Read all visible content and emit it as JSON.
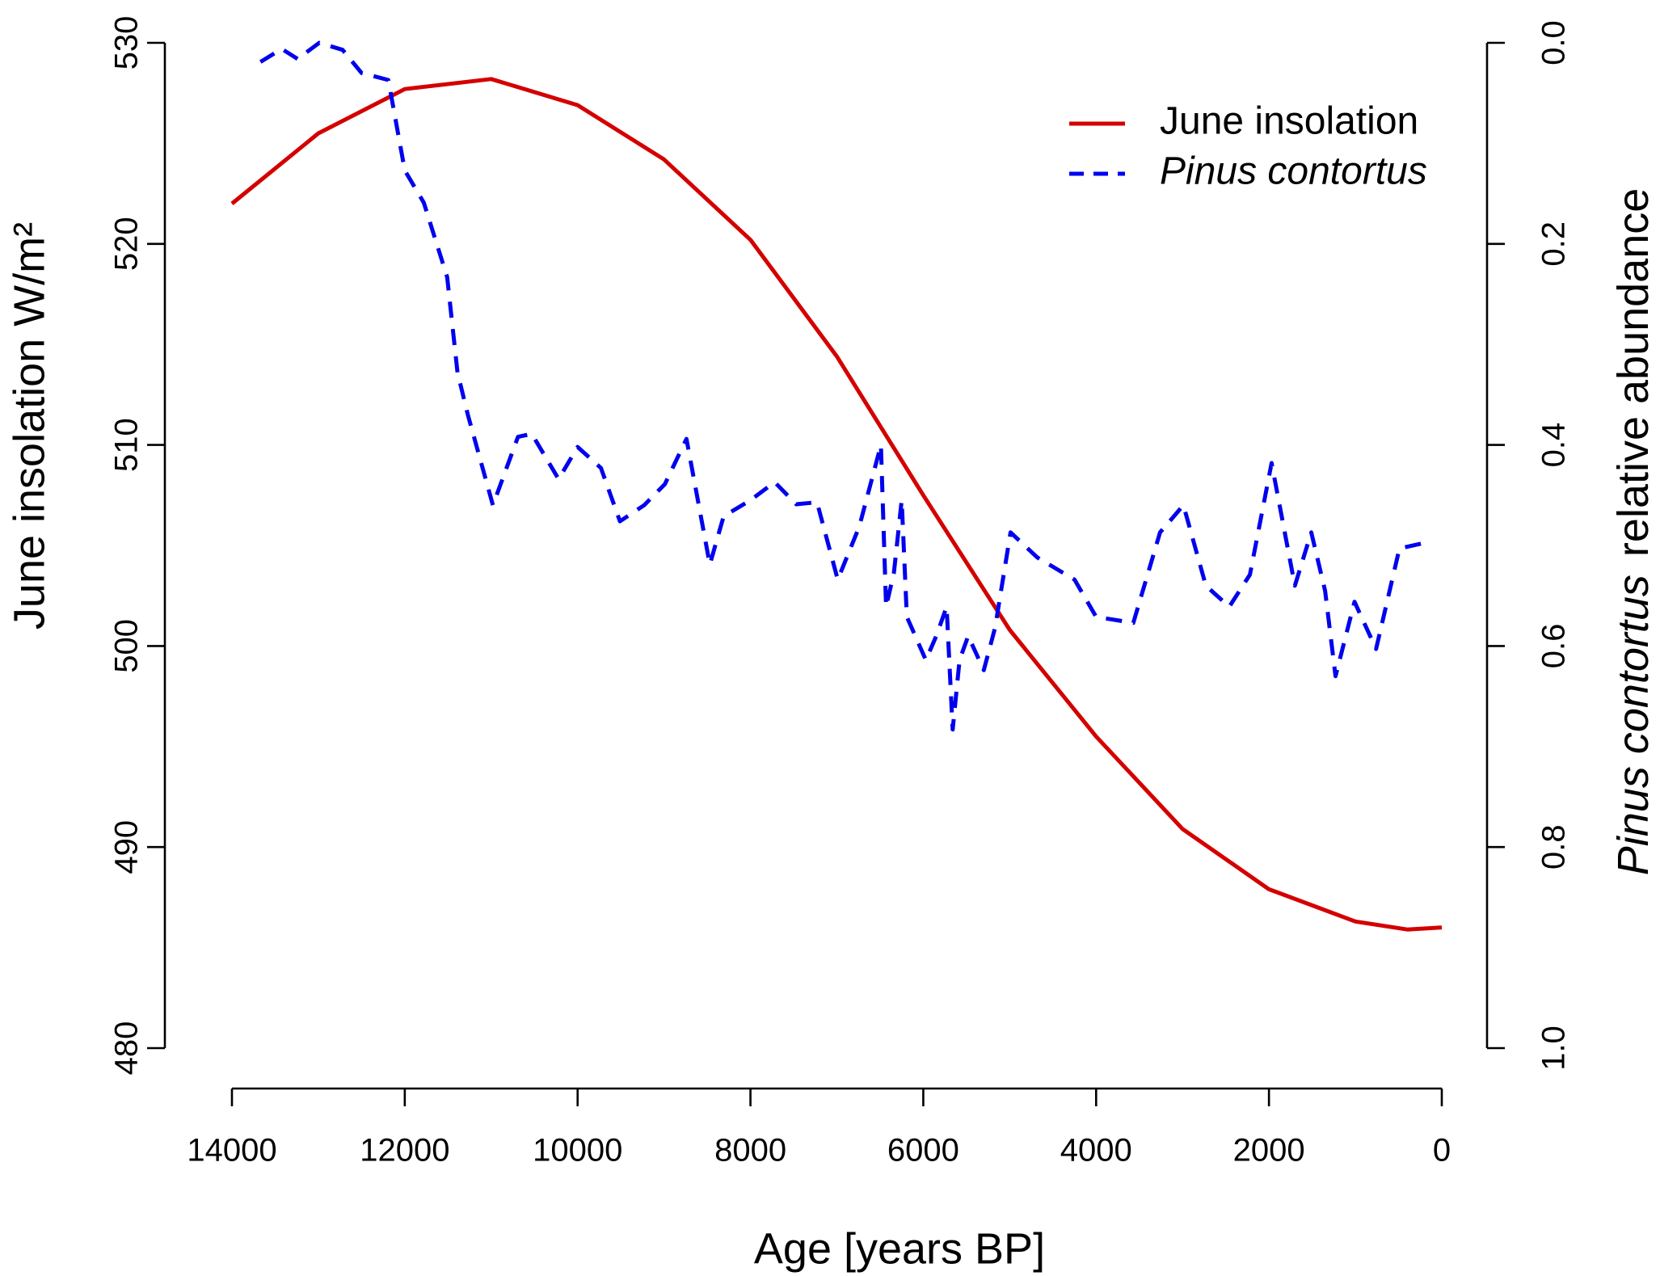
{
  "chart_data": {
    "type": "line",
    "xlabel": "Age [years BP]",
    "ylabel": "June insolation W/m²",
    "y2label_species": "Pinus contortus",
    "y2label": "relative abundance",
    "xlim": [
      14000,
      0
    ],
    "xticks": [
      14000,
      12000,
      10000,
      8000,
      6000,
      4000,
      2000,
      0
    ],
    "ylim": [
      480,
      530
    ],
    "yticks": [
      480,
      490,
      500,
      510,
      520,
      530
    ],
    "y2lim": [
      1,
      0
    ],
    "y2ticks": [
      {
        "value": 0,
        "label": "0.0"
      },
      {
        "value": 0.2,
        "label": "0.2"
      },
      {
        "value": 0.4,
        "label": "0.4"
      },
      {
        "value": 0.6,
        "label": "0.6"
      },
      {
        "value": 0.8,
        "label": "0.8"
      },
      {
        "value": 1,
        "label": "1.0"
      }
    ],
    "legend": "top-right",
    "series": [
      {
        "name": "June insolation",
        "color": "#d40000",
        "style": "solid",
        "x": [
          14000,
          13000,
          12000,
          11000,
          10000,
          9000,
          8000,
          7000,
          6000,
          5000,
          4000,
          3000,
          2000,
          1000,
          400,
          0
        ],
        "values": [
          522.0,
          525.5,
          527.7,
          528.2,
          526.9,
          524.2,
          520.2,
          514.4,
          507.5,
          500.8,
          495.5,
          490.9,
          487.9,
          486.3,
          485.9,
          486.0
        ]
      },
      {
        "name": "Pinus contortus",
        "color": "#0000ee",
        "style": "dashed",
        "axis": "y2",
        "x": [
          13670,
          13424,
          13240,
          12990,
          12720,
          12500,
          12190,
          12000,
          11780,
          11510,
          11390,
          11270,
          10980,
          10690,
          10530,
          10220,
          10000,
          9730,
          9510,
          9230,
          8990,
          8740,
          8470,
          8310,
          8000,
          7720,
          7470,
          7230,
          6990,
          6740,
          6490,
          6430,
          6340,
          6250,
          6190,
          5970,
          5850,
          5730,
          5660,
          5580,
          5480,
          5300,
          5170,
          4990,
          4680,
          4250,
          4000,
          3570,
          3260,
          2990,
          2730,
          2460,
          2220,
          1970,
          1700,
          1510,
          1350,
          1230,
          1010,
          760,
          490,
          180
        ],
        "values": [
          0.019,
          0.006,
          0.016,
          0.0,
          0.007,
          0.03,
          0.037,
          0.127,
          0.159,
          0.233,
          0.328,
          0.37,
          0.46,
          0.392,
          0.389,
          0.434,
          0.402,
          0.423,
          0.476,
          0.46,
          0.439,
          0.394,
          0.519,
          0.471,
          0.455,
          0.437,
          0.459,
          0.457,
          0.534,
          0.481,
          0.4,
          0.561,
          0.527,
          0.455,
          0.571,
          0.614,
          0.59,
          0.561,
          0.683,
          0.614,
          0.59,
          0.624,
          0.582,
          0.487,
          0.512,
          0.534,
          0.571,
          0.577,
          0.487,
          0.46,
          0.54,
          0.561,
          0.529,
          0.418,
          0.54,
          0.487,
          0.545,
          0.63,
          0.556,
          0.603,
          0.503,
          0.497
        ]
      }
    ]
  }
}
